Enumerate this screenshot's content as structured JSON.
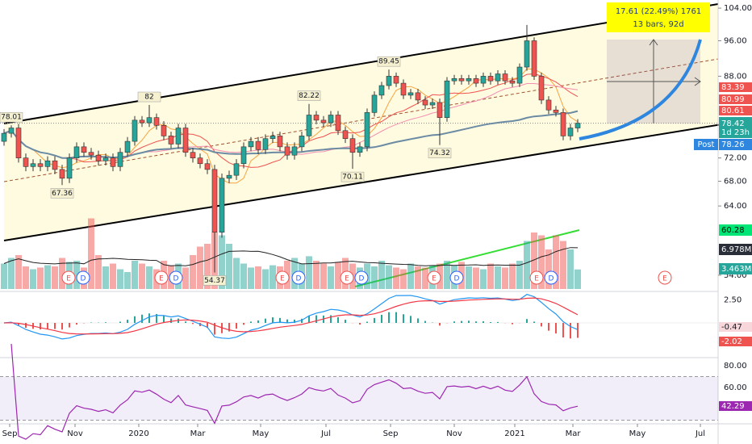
{
  "chart_data": {
    "type": "candlestick",
    "log_scale": true,
    "up_color": "#26a69a",
    "down_color": "#ef5350",
    "ylim": [
      52.2,
      106.1
    ],
    "yticks": [
      {
        "value": 104,
        "label": "104.00"
      },
      {
        "value": 96,
        "label": "96.00"
      },
      {
        "value": 88,
        "label": "88.00"
      },
      {
        "value": 72,
        "label": "72.00"
      },
      {
        "value": 68,
        "label": "68.00"
      },
      {
        "value": 64,
        "label": "64.00"
      },
      {
        "value": 54,
        "label": "54.00"
      }
    ],
    "open": [
      75,
      76.5,
      77.5,
      72,
      70.5,
      71,
      70.5,
      71.5,
      70,
      68.5,
      72,
      74,
      73,
      72.5,
      71.5,
      72,
      70.5,
      73,
      75,
      79,
      78.5,
      79.5,
      78,
      76,
      74.5,
      77.5,
      73,
      72,
      71,
      70,
      60,
      68.5,
      69,
      71,
      74,
      75,
      73.5,
      75.5,
      76,
      74,
      72.5,
      74,
      76,
      80,
      79,
      78.5,
      80,
      77,
      75.5,
      73,
      74,
      80.5,
      84,
      86,
      88,
      86.5,
      84,
      84.5,
      83,
      82,
      82.5,
      79.5,
      87,
      87.5,
      87,
      87.5,
      86.5,
      88,
      87,
      88.5,
      87,
      86.5,
      90,
      96,
      88,
      83,
      81,
      80.5,
      76,
      77.5
    ],
    "high": [
      77.3,
      78.01,
      78.3,
      72.8,
      71.8,
      71.8,
      72.3,
      72.3,
      70.8,
      72.8,
      74.8,
      74.8,
      73.8,
      73.3,
      72.8,
      72.8,
      73.8,
      75.8,
      79.8,
      79.8,
      82,
      80.3,
      78.8,
      76.8,
      78.3,
      78.3,
      73.8,
      72.8,
      71.8,
      70.8,
      69.3,
      69.8,
      71.8,
      74.8,
      75.8,
      75.8,
      76.3,
      76.8,
      76.8,
      74.8,
      74.8,
      76.8,
      82.22,
      80.8,
      79.8,
      80.8,
      80.8,
      77.8,
      76.3,
      74.8,
      81.3,
      84.8,
      86.8,
      89.45,
      88.8,
      87.3,
      85.3,
      85.3,
      83.8,
      83.3,
      83.3,
      87.8,
      88.3,
      88.3,
      88.3,
      88.3,
      88.8,
      88.8,
      89.3,
      89.3,
      87.8,
      90.8,
      99.8,
      96.8,
      88.8,
      83.8,
      81.8,
      81.3,
      78.3,
      79.2
    ],
    "low": [
      74.2,
      75.7,
      71.2,
      69.7,
      69.7,
      69.7,
      69.7,
      69.2,
      67.36,
      67.7,
      71.2,
      72.2,
      71.7,
      70.7,
      70.7,
      69.7,
      69.7,
      72.2,
      74.2,
      77.7,
      77.7,
      77.2,
      75.2,
      73.7,
      73.7,
      72.2,
      71.2,
      70.2,
      69.2,
      54.37,
      59.2,
      67.7,
      68.2,
      70.2,
      73.2,
      72.7,
      72.7,
      74.7,
      73.2,
      71.7,
      71.7,
      73.2,
      75.2,
      78.2,
      77.7,
      77.7,
      76.2,
      74.7,
      70.11,
      72.2,
      73.2,
      79.7,
      83.2,
      85.2,
      85.7,
      83.2,
      83.2,
      82.2,
      81.2,
      81.2,
      74.32,
      78.7,
      86.2,
      86.2,
      86.2,
      85.7,
      85.7,
      86.2,
      86.2,
      86.2,
      85.7,
      85.7,
      89.2,
      87.2,
      82.2,
      80.2,
      79.7,
      75.2,
      75.2,
      76.7
    ],
    "close": [
      76.5,
      77.5,
      72,
      70.5,
      71,
      70.5,
      71.5,
      70,
      68.5,
      72,
      74,
      73,
      72.5,
      71.5,
      72,
      70.5,
      73,
      75,
      79,
      78.5,
      79.5,
      78,
      76,
      74.5,
      77.5,
      73,
      72,
      71,
      70,
      60,
      68.5,
      69,
      71,
      74,
      75,
      73.5,
      75.5,
      76,
      74,
      72.5,
      74,
      76,
      80,
      79,
      78.5,
      80,
      77,
      75.5,
      73,
      74,
      80.5,
      84,
      86,
      88,
      86.5,
      84,
      84.5,
      83,
      82,
      82.5,
      79.5,
      87,
      87.5,
      87,
      87.5,
      86.5,
      88,
      87,
      88.5,
      87,
      86.5,
      90,
      96,
      88,
      83,
      81,
      80.5,
      76,
      77.5,
      78.42
    ],
    "volume": [
      4.5,
      5.5,
      6,
      4,
      3.5,
      3.8,
      4.2,
      4,
      5.5,
      4.8,
      5,
      3.8,
      12.5,
      6,
      4,
      4.5,
      3.5,
      3,
      5,
      4.5,
      4,
      3.5,
      5,
      4.2,
      4.5,
      3.8,
      6,
      7.5,
      8,
      10,
      9.5,
      8,
      5.5,
      4.5,
      3.8,
      4,
      3.5,
      4.2,
      4,
      5,
      5.5,
      4.5,
      5.8,
      5,
      4.5,
      4,
      4.8,
      5.5,
      4.5,
      3.8,
      4.5,
      4,
      5,
      4.2,
      3.8,
      3.5,
      4.5,
      4,
      3.8,
      4.2,
      4.5,
      5,
      4.2,
      4.8,
      4,
      3.8,
      3.5,
      4.5,
      4,
      3.8,
      4.5,
      5,
      8.5,
      10,
      9.5,
      7,
      9.5,
      8.5,
      7,
      3.463
    ],
    "volume_last_label": "3.463M",
    "volume_ma_label": "6.978M",
    "extremes": [
      78.01,
      67.36,
      82.0,
      54.37,
      82.22,
      70.11,
      89.45,
      74.32
    ],
    "ma_tags": [
      "83.39",
      "80.99",
      "80.61"
    ],
    "countdown": "1d 23h",
    "post_label": "Post",
    "post_price": "78.26",
    "indicator_tag": "60.28",
    "measure": {
      "line1": "17.61 (22.49%) 1761",
      "line2": "13 bars, 92d"
    },
    "events": [
      "E",
      "D",
      "E",
      "D",
      "E",
      "D",
      "E",
      "D",
      "E",
      "D",
      "E",
      "D",
      "E"
    ],
    "x_labels": [
      "Sep",
      "Nov",
      "2020",
      "Mar",
      "May",
      "Jul",
      "Sep",
      "Nov",
      "2021",
      "Mar",
      "May",
      "Jul"
    ],
    "macd": {
      "yticks": [
        {
          "value": 2.5,
          "label": "2.50"
        }
      ],
      "tags": [
        "-0.47",
        "-2.02"
      ]
    },
    "rsi": {
      "yticks": [
        {
          "value": 80,
          "label": "80.00"
        },
        {
          "value": 60,
          "label": "60.00"
        }
      ],
      "tag": "42.29"
    }
  }
}
